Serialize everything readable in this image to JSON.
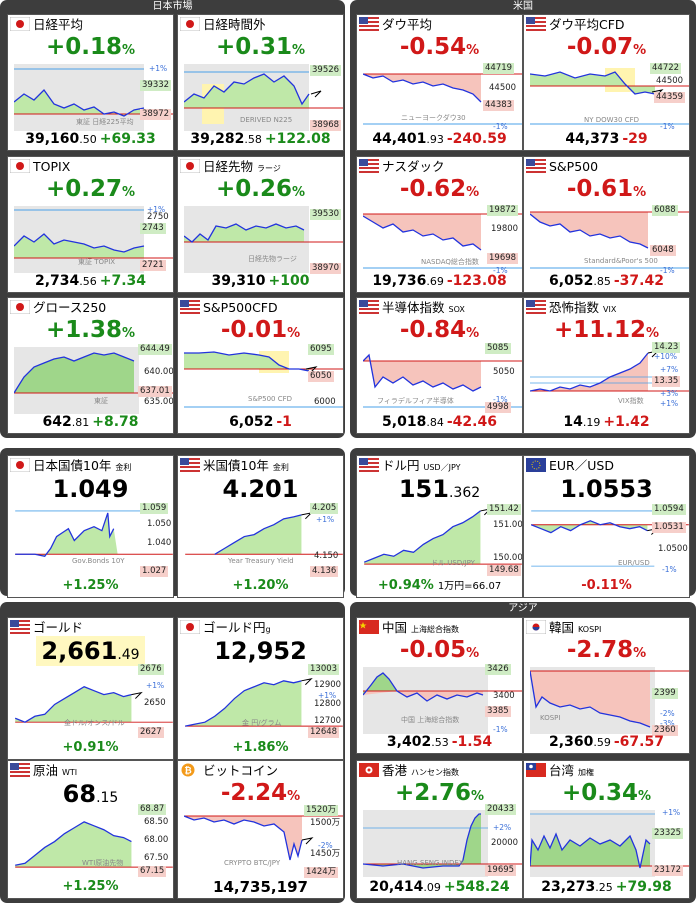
{
  "sections": {
    "japan": "日本市場",
    "us": "米国",
    "asia": "アジア"
  },
  "cards": {
    "nikkei": {
      "name": "日経平均",
      "pct": "+0.18",
      "unit": "%",
      "price_int": "39,160",
      "price_dec": ".50",
      "change": "+69.33",
      "labels": [
        "+1%",
        "39332",
        "38972"
      ],
      "watermark": "東証 日経225平均"
    },
    "nikkei_after": {
      "name": "日経時間外",
      "pct": "+0.31",
      "unit": "%",
      "price_int": "39,282",
      "price_dec": ".58",
      "change": "+122.08",
      "labels": [
        "39526",
        "38968"
      ],
      "watermark": "DERIVED N225"
    },
    "dow": {
      "name": "ダウ平均",
      "pct": "-0.54",
      "unit": "%",
      "price_int": "44,401",
      "price_dec": ".93",
      "change": "-240.59",
      "labels": [
        "44719",
        "44500",
        "44383",
        "-1%"
      ],
      "watermark": "ニューヨークダウ30"
    },
    "dow_cfd": {
      "name": "ダウ平均CFD",
      "pct": "-0.07",
      "unit": "%",
      "price_int": "44,373",
      "price_dec": "",
      "change": "-29",
      "labels": [
        "44722",
        "44500",
        "44359",
        "-1%"
      ],
      "watermark": "NY DOW30 CFD"
    },
    "topix": {
      "name": "TOPIX",
      "pct": "+0.27",
      "unit": "%",
      "price_int": "2,734",
      "price_dec": ".56",
      "change": "+7.34",
      "labels": [
        "+1%",
        "2750",
        "2743",
        "2721"
      ],
      "watermark": "東証 TOPIX"
    },
    "nikkei_fut": {
      "name": "日経先物",
      "name_sub": "ラージ",
      "pct": "+0.26",
      "unit": "%",
      "price_int": "39,310",
      "price_dec": "",
      "change": "+100",
      "labels": [
        "39530",
        "38970"
      ],
      "watermark": "日経先物ラージ"
    },
    "nasdaq": {
      "name": "ナスダック",
      "pct": "-0.62",
      "unit": "%",
      "price_int": "19,736",
      "price_dec": ".69",
      "change": "-123.08",
      "labels": [
        "19872",
        "19800",
        "19698",
        "-1%"
      ],
      "watermark": "NASDAQ総合指数"
    },
    "sp500": {
      "name": "S&P500",
      "pct": "-0.61",
      "unit": "%",
      "price_int": "6,052",
      "price_dec": ".85",
      "change": "-37.42",
      "labels": [
        "6088",
        "6048",
        "-1%"
      ],
      "watermark": "Standard&Poor's 500"
    },
    "growth": {
      "name": "グロース250",
      "pct": "+1.38",
      "unit": "%",
      "price_int": "642",
      "price_dec": ".81",
      "change": "+8.78",
      "labels": [
        "644.49",
        "640.00",
        "637.01",
        "635.00"
      ],
      "watermark": "東証"
    },
    "sp500_cfd": {
      "name": "S&P500CFD",
      "pct": "-0.01",
      "unit": "%",
      "price_int": "6,052",
      "price_dec": "",
      "change": "-1",
      "labels": [
        "6095",
        "6050",
        "6000"
      ],
      "watermark": "S&P500 CFD"
    },
    "sox": {
      "name": "半導体指数",
      "name_sub": "SOX",
      "pct": "-0.84",
      "unit": "%",
      "price_int": "5,018",
      "price_dec": ".84",
      "change": "-42.46",
      "labels": [
        "5085",
        "5050",
        "4998",
        "-1%"
      ],
      "watermark": "フィラデルフィア半導体"
    },
    "vix": {
      "name": "恐怖指数",
      "name_sub": "VIX",
      "pct": "+11.12",
      "unit": "%",
      "price_int": "14",
      "price_dec": ".19",
      "change": "+1.42",
      "labels": [
        "14.23",
        "+10%",
        "+7%",
        "13.35",
        "+3%",
        "+1%"
      ],
      "watermark": "VIX指数"
    },
    "jgb": {
      "name": "日本国債10年",
      "name_sub": "金利",
      "value": "1.049",
      "change": "+1.25%",
      "labels": [
        "1.059",
        "1.050",
        "1.040",
        "1.027"
      ],
      "watermark": "Gov.Bonds 10Y"
    },
    "ust": {
      "name": "米国債10年",
      "name_sub": "金利",
      "value": "4.201",
      "change": "+1.20%",
      "labels": [
        "4.205",
        "+1%",
        "4.150",
        "4.136"
      ],
      "watermark": "Year Treasury Yield"
    },
    "usdjpy": {
      "name": "ドル円",
      "name_sub": "USD／JPY",
      "value_int": "151",
      "value_dec": ".362",
      "change": "+0.94%",
      "extra": "1万円=66.07",
      "labels": [
        "151.42",
        "151.00",
        "150.00",
        "149.68"
      ],
      "watermark": "ドル USD/JPY"
    },
    "eurusd": {
      "name": "EUR／USD",
      "value_int": "1",
      "value_dec": ".0553",
      "change": "-0.11%",
      "labels": [
        "1.0594",
        "1.0531",
        "1.0500",
        "-1%"
      ],
      "watermark": "EUR/USD"
    },
    "gold": {
      "name": "ゴールド",
      "value_int": "2,661",
      "value_dec": ".49",
      "change": "+0.91%",
      "labels": [
        "2676",
        "+1%",
        "2650",
        "2627"
      ],
      "watermark": "金ドル/オンス/ドル"
    },
    "gold_yen": {
      "name": "ゴールド円",
      "name_sub": "g",
      "value": "12,952",
      "change": "+1.86%",
      "labels": [
        "13003",
        "12900",
        "+1%",
        "12800",
        "12700",
        "12648"
      ],
      "watermark": "金 円/グラム"
    },
    "china": {
      "name": "中国",
      "name_sub": "上海総合指数",
      "pct": "-0.05",
      "unit": "%",
      "price_int": "3,402",
      "price_dec": ".53",
      "change": "-1.54",
      "labels": [
        "3426",
        "3400",
        "3385",
        "-1%"
      ],
      "watermark": "中国 上海総合指数"
    },
    "korea": {
      "name": "韓国",
      "name_sub": "KOSPI",
      "pct": "-2.78",
      "unit": "%",
      "price_int": "2,360",
      "price_dec": ".59",
      "change": "-67.57",
      "labels": [
        "2399",
        "-2%",
        "-3%",
        "2360"
      ],
      "watermark": "KOSPI"
    },
    "oil": {
      "name": "原油",
      "name_sub": "WTI",
      "value_int": "68",
      "value_dec": ".15",
      "change": "+1.25%",
      "labels": [
        "68.87",
        "68.50",
        "68.00",
        "67.50",
        "67.15"
      ],
      "watermark": "WTI原油先物"
    },
    "bitcoin": {
      "name": "ビットコイン",
      "pct": "-2.24",
      "unit": "%",
      "value": "14,735,197",
      "labels": [
        "1520万",
        "1500万",
        "-2%",
        "1450万",
        "1424万"
      ],
      "watermark": "CRYPTO BTC/JPY"
    },
    "hongkong": {
      "name": "香港",
      "name_sub": "ハンセン指数",
      "pct": "+2.76",
      "unit": "%",
      "price_int": "20,414",
      "price_dec": ".09",
      "change": "+548.24",
      "labels": [
        "20433",
        "+2%",
        "20000",
        "19695"
      ],
      "watermark": "HANG SENG INDEX"
    },
    "taiwan": {
      "name": "台湾",
      "name_sub": "加権",
      "pct": "+0.34",
      "unit": "%",
      "price_int": "23,273",
      "price_dec": ".25",
      "change": "+79.98",
      "labels": [
        "+1%",
        "23325",
        "23172"
      ],
      "watermark": "台湾加権指数"
    }
  },
  "colors": {
    "up": "#1a8a1a",
    "down": "#d01818",
    "line": "#2233dd"
  }
}
